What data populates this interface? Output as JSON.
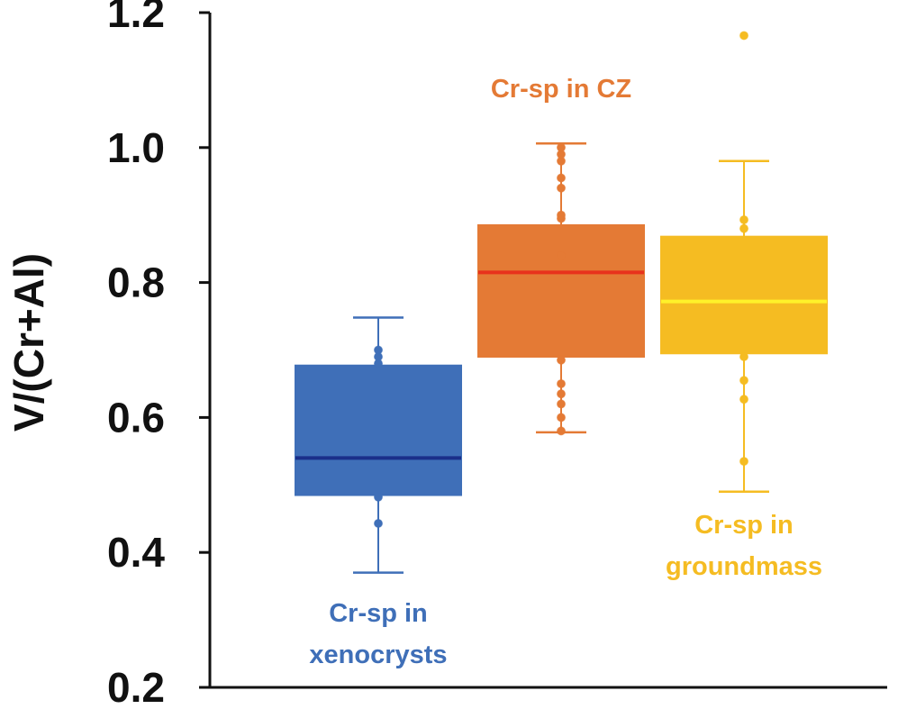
{
  "chart_data": {
    "type": "box",
    "ylabel": "V/(Cr+Al)",
    "xlabel": "",
    "ylim": [
      0.2,
      1.2
    ],
    "yticks": [
      "0.2",
      "0.4",
      "0.6",
      "0.8",
      "1.0",
      "1.2"
    ],
    "grid": false,
    "legend": "none",
    "series": [
      {
        "name": "Cr-sp in xenocrysts",
        "label_lines": [
          "Cr-sp in",
          "xenocrysts"
        ],
        "color": "#3f6fb8",
        "median_color": "#1a2f8a",
        "whisker_low": 0.37,
        "q1": 0.485,
        "median": 0.54,
        "q3": 0.677,
        "whisker_high": 0.748,
        "points": [
          0.443,
          0.482,
          0.68,
          0.69,
          0.7
        ]
      },
      {
        "name": "Cr-sp in CZ",
        "label_lines": [
          "Cr-sp in CZ"
        ],
        "color": "#e47a35",
        "median_color": "#e8321c",
        "whisker_low": 0.578,
        "q1": 0.69,
        "median": 0.815,
        "q3": 0.885,
        "whisker_high": 1.006,
        "points": [
          0.58,
          0.6,
          0.62,
          0.635,
          0.65,
          0.685,
          0.84,
          0.895,
          0.9,
          0.94,
          0.955,
          0.98,
          0.99,
          1.0
        ]
      },
      {
        "name": "Cr-sp in groundmass",
        "label_lines": [
          "Cr-sp in",
          "groundmass"
        ],
        "color": "#f5bc22",
        "median_color": "#fff12a",
        "whisker_low": 0.49,
        "q1": 0.695,
        "median": 0.772,
        "q3": 0.868,
        "whisker_high": 0.98,
        "points": [
          0.535,
          0.627,
          0.655,
          0.69,
          0.88,
          0.893,
          1.166
        ]
      }
    ]
  }
}
